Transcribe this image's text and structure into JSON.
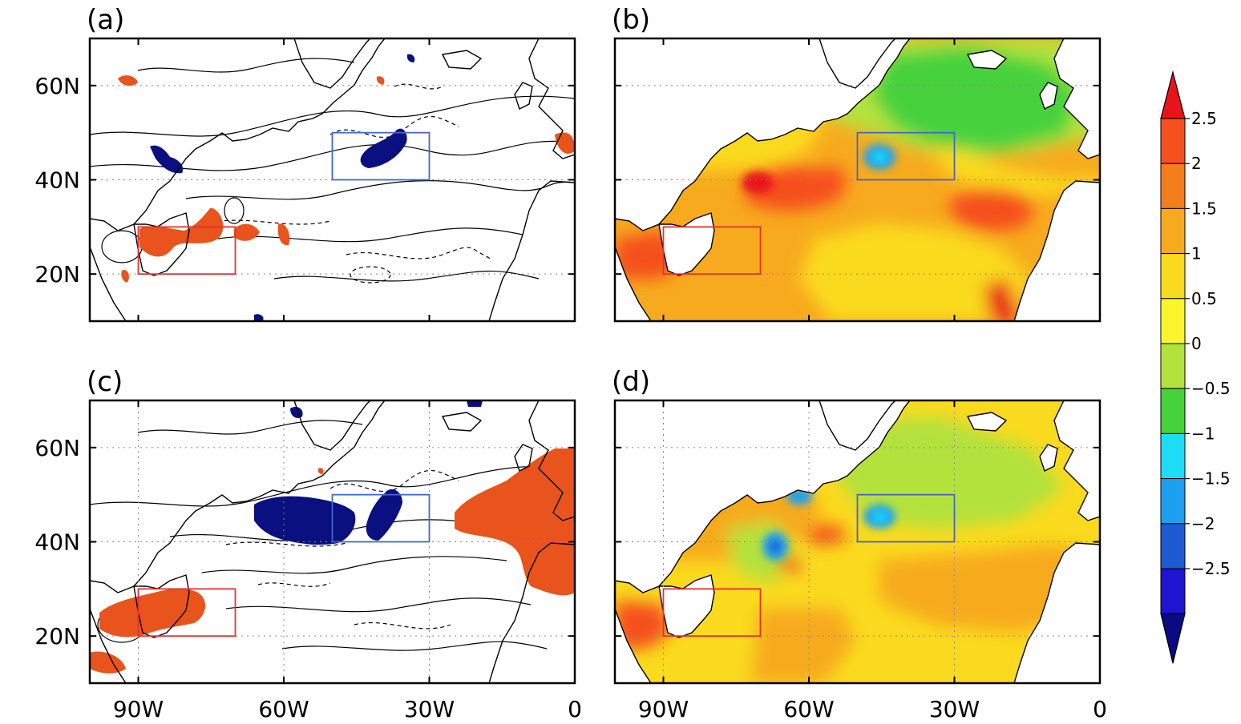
{
  "panels": [
    {
      "id": "a",
      "label": "(a)",
      "type": "contour"
    },
    {
      "id": "b",
      "label": "(b)",
      "type": "filled"
    },
    {
      "id": "c",
      "label": "(c)",
      "type": "contour"
    },
    {
      "id": "d",
      "label": "(d)",
      "type": "filled"
    }
  ],
  "map_extent": {
    "lon_min": -100,
    "lon_max": 0,
    "lat_min": 10,
    "lat_max": 70
  },
  "lat_ticks": [
    {
      "value": 60,
      "label": "60N"
    },
    {
      "value": 40,
      "label": "40N"
    },
    {
      "value": 20,
      "label": "20N"
    }
  ],
  "lon_ticks": [
    {
      "value": -90,
      "label": "90W"
    },
    {
      "value": -60,
      "label": "60W"
    },
    {
      "value": -30,
      "label": "30W"
    },
    {
      "value": 0,
      "label": "0"
    }
  ],
  "regions": [
    {
      "name": "gulf-of-mexico-box",
      "lon": [
        -90,
        -70
      ],
      "lat": [
        20,
        30
      ],
      "color": "#e33333"
    },
    {
      "name": "north-atlantic-box",
      "lon": [
        -50,
        -30
      ],
      "lat": [
        40,
        50
      ],
      "color": "#4466cc"
    }
  ],
  "colorbar": {
    "ticks": [
      "2.5",
      "2",
      "1.5",
      "1",
      "0.5",
      "0",
      "−0.5",
      "−1",
      "−1.5",
      "−2",
      "−2.5"
    ],
    "colors": [
      "#e8141c",
      "#f5501e",
      "#f47d1e",
      "#f7aa1e",
      "#fada1e",
      "#faf52c",
      "#b4e23c",
      "#46d23c",
      "#1edcf5",
      "#1ea0f0",
      "#1e5ad2",
      "#1e14d2",
      "#0a0a82"
    ]
  },
  "shading_colors": {
    "positive": "#e8541c",
    "negative": "#0a1080"
  }
}
